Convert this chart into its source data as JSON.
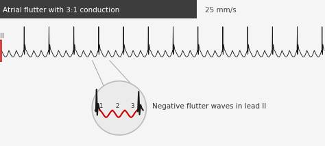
{
  "title_left": "Atrial flutter with 3:1 conduction",
  "title_right": "25 mm/s",
  "title_bg": "#3d3d3d",
  "title_fg": "#ffffff",
  "lead_label": "II",
  "annotation_text": "Negative flutter waves in lead II",
  "ecg_color": "#1a1a1a",
  "flutter_wave_color": "#cc0000",
  "circle_facecolor": "#ebebeb",
  "circle_edgecolor": "#bbbbbb",
  "bg_color": "#f5f5f5",
  "n_qrs": 13,
  "flutter_waves_per_qrs": 3,
  "red_box_color": "#cc2222",
  "zoom_line_color": "#aaaaaa",
  "label_color": "#222222"
}
